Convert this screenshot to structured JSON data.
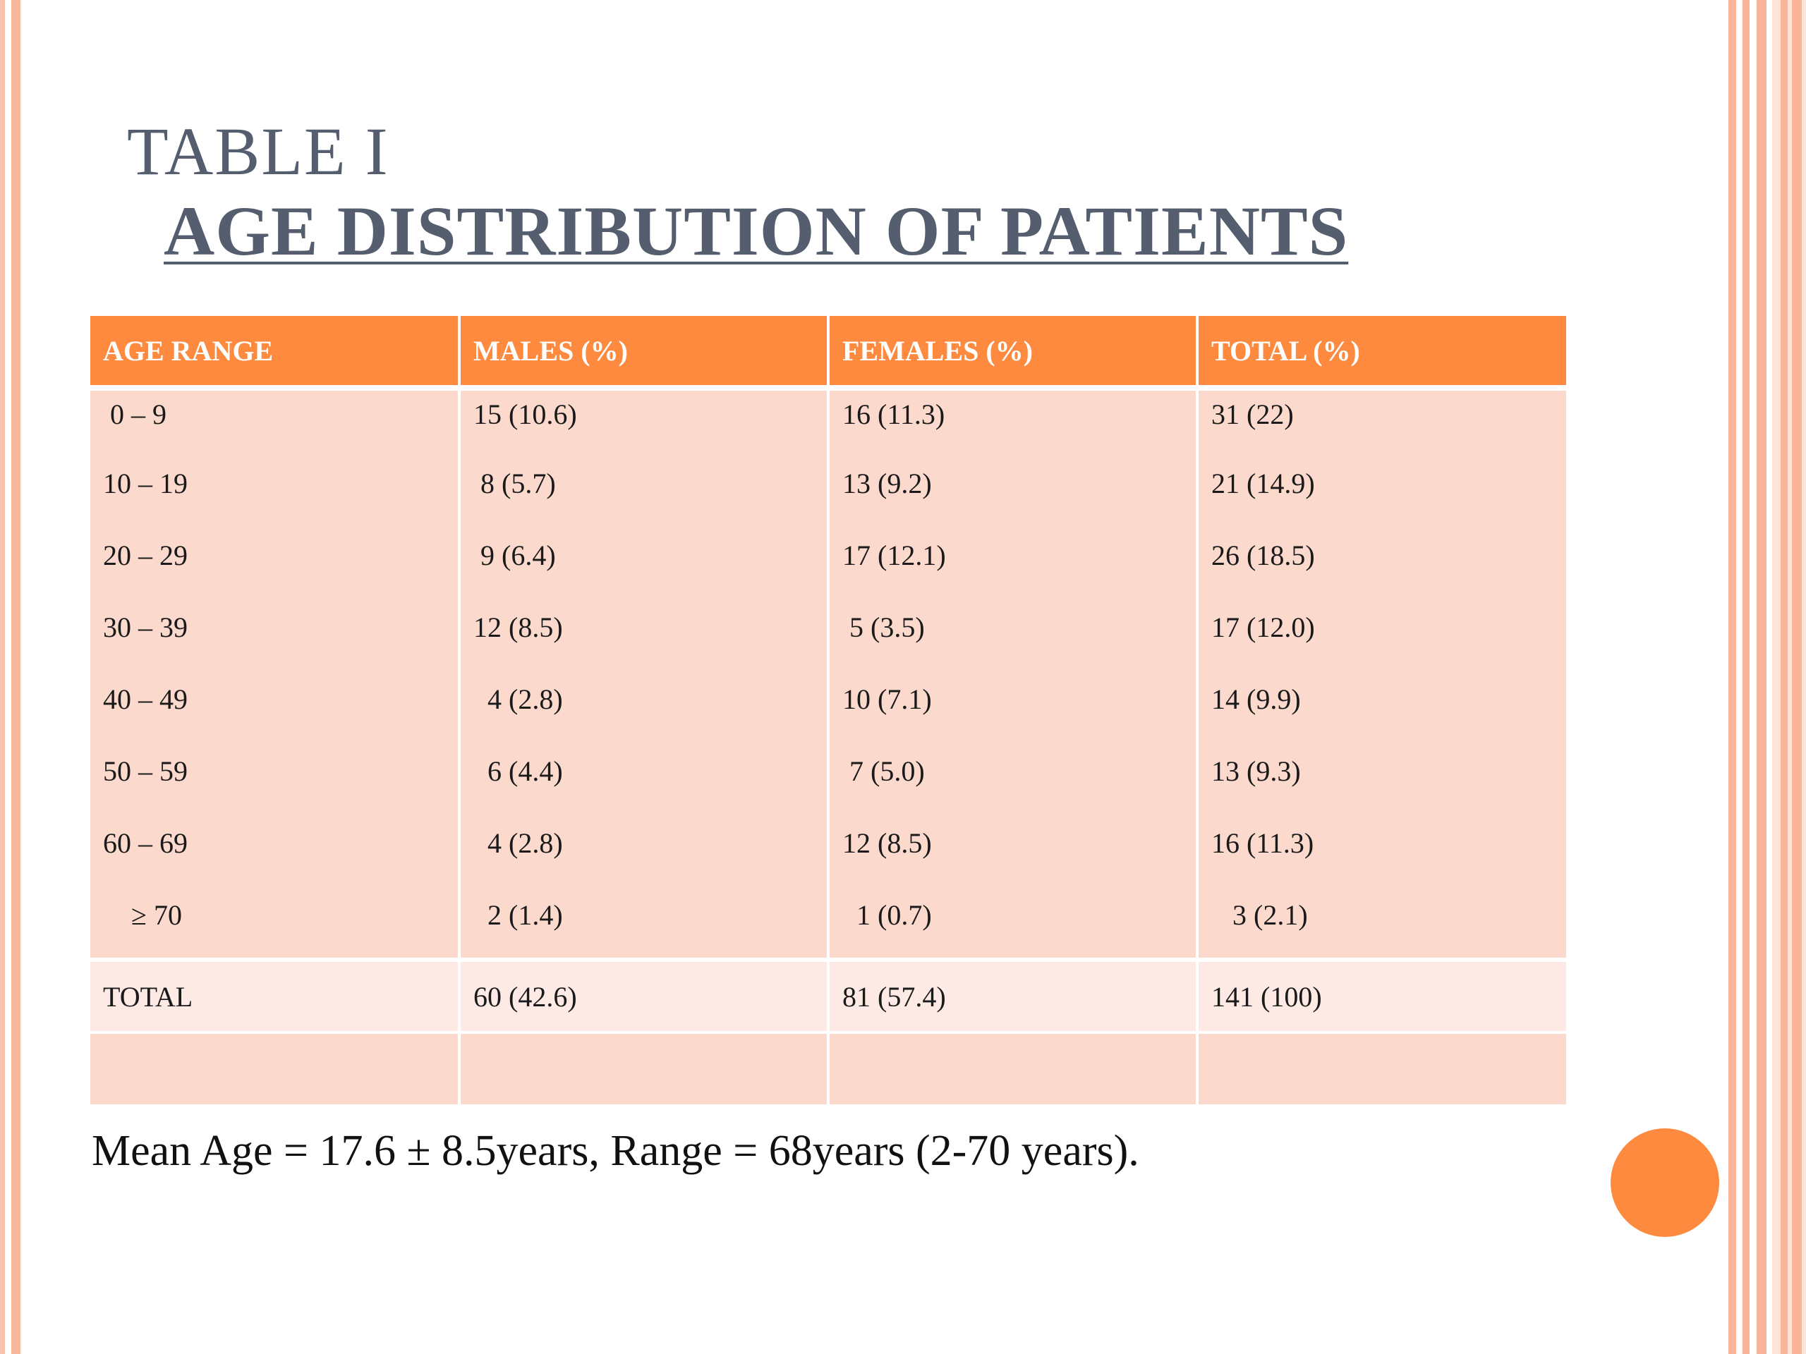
{
  "slide": {
    "title_line1": "TABLE I",
    "title_line2": "AGE DISTRIBUTION OF PATIENTS",
    "accent_color": "#fd8a3e",
    "row_fill_color": "#fcd9cd"
  },
  "table": {
    "headers": [
      "AGE RANGE",
      "MALES (%)",
      "FEMALES (%)",
      "TOTAL (%)"
    ],
    "rows": [
      [
        " 0 – 9",
        "15 (10.6)",
        "16 (11.3)",
        "31 (22)"
      ],
      [
        "10 – 19",
        " 8 (5.7)",
        "13 (9.2)",
        "21 (14.9)"
      ],
      [
        "20 – 29",
        " 9 (6.4)",
        "17 (12.1)",
        "26 (18.5)"
      ],
      [
        "30 – 39",
        "12 (8.5)",
        " 5 (3.5)",
        "17 (12.0)"
      ],
      [
        "40 – 49",
        "  4 (2.8)",
        "10 (7.1)",
        "14 (9.9)"
      ],
      [
        "50 – 59",
        "  6 (4.4)",
        " 7 (5.0)",
        "13 (9.3)"
      ],
      [
        "60 – 69",
        "  4 (2.8)",
        "12 (8.5)",
        "16 (11.3)"
      ],
      [
        "    ≥ 70",
        "  2 (1.4)",
        "  1 (0.7)",
        "   3 (2.1)"
      ]
    ],
    "total_row": [
      "TOTAL",
      "60 (42.6)",
      "81 (57.4)",
      "141 (100)"
    ]
  },
  "footnote": "Mean Age = 17.6 ± 8.5years, Range = 68years (2-70 years)."
}
